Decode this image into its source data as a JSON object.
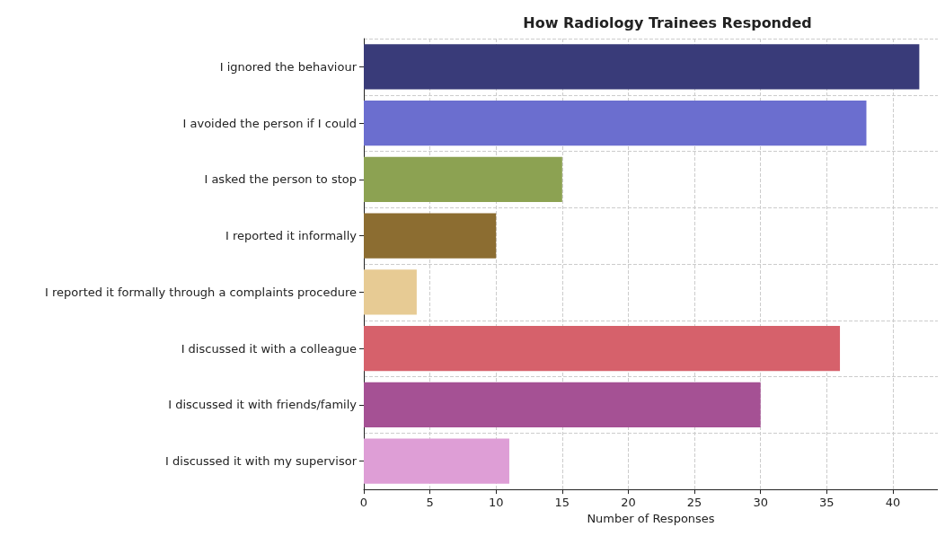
{
  "chart_data": {
    "type": "bar",
    "orientation": "horizontal",
    "title": "How Radiology Trainees Responded",
    "xlabel": "Number of Responses",
    "categories": [
      "I ignored the behaviour",
      "I avoided the person if I could",
      "I asked the person to stop",
      "I reported it informally",
      "I reported it formally through a complaints procedure",
      "I discussed it with a colleague",
      "I discussed it with friends/family",
      "I discussed it with my supervisor"
    ],
    "values": [
      42,
      38,
      15,
      10,
      4,
      36,
      30,
      11
    ],
    "colors": [
      "#393b79",
      "#6b6ecf",
      "#8ca252",
      "#8c6d31",
      "#e7cb94",
      "#d6616b",
      "#a55194",
      "#de9ed6"
    ],
    "xlim": [
      0,
      43.4
    ],
    "xticks": [
      0,
      5,
      10,
      15,
      20,
      25,
      30,
      35,
      40
    ],
    "grid": true
  }
}
